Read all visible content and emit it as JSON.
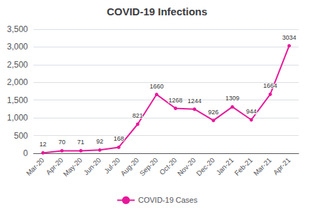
{
  "chart_data": {
    "type": "line",
    "title": "COVID-19 Infections",
    "categories": [
      "Mar-20",
      "Apr-20",
      "May-20",
      "Jun-20",
      "Jul-20",
      "Aug-20",
      "Sep-20",
      "Oct-20",
      "Nov-20",
      "Dec-20",
      "Jan-21",
      "Feb-21",
      "Mar-21",
      "Apr-21"
    ],
    "series": [
      {
        "name": "COVID-19 Cases",
        "color": "#e8189a",
        "values": [
          12,
          70,
          71,
          92,
          168,
          821,
          1660,
          1268,
          1244,
          926,
          1309,
          944,
          1664,
          3034
        ]
      }
    ],
    "ylim": [
      0,
      3500
    ],
    "yticks": [
      0,
      500,
      {
        "value": 1000,
        "label": "1,000"
      },
      {
        "value": 1500,
        "label": "1,500"
      },
      {
        "value": 2000,
        "label": "2,000"
      },
      {
        "value": 2500,
        "label": "2,500"
      },
      {
        "value": 3000,
        "label": "3,000"
      },
      {
        "value": 3500,
        "label": "3,500"
      }
    ],
    "grid": true,
    "legend": "bottom",
    "data_labels": true,
    "marker": "circle"
  }
}
